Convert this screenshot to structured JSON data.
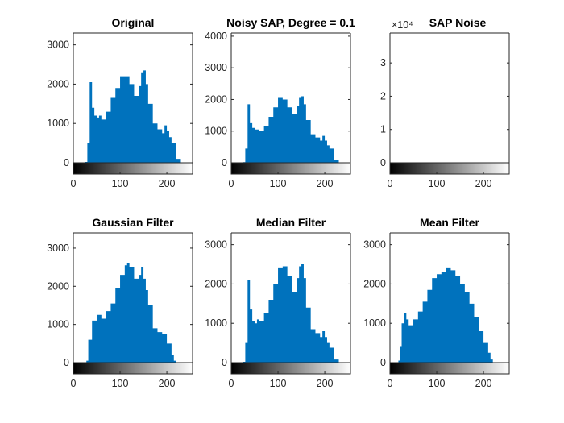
{
  "colors": {
    "bar": "#0072BD",
    "axis": "#262626",
    "background": "#ffffff"
  },
  "chart_data": [
    {
      "type": "bar",
      "title": "Original",
      "xlabel": "",
      "ylabel": "",
      "xlim": [
        0,
        255
      ],
      "ylim": [
        0,
        3300
      ],
      "xticks": [
        0,
        100,
        200
      ],
      "yticks": [
        0,
        1000,
        2000,
        3000
      ],
      "yexp": "",
      "xbins": [
        0,
        10,
        20,
        25,
        30,
        35,
        40,
        45,
        50,
        55,
        60,
        70,
        80,
        90,
        100,
        110,
        120,
        130,
        140,
        145,
        150,
        155,
        160,
        170,
        180,
        190,
        195,
        200,
        205,
        210,
        220,
        230,
        240,
        255
      ],
      "values": [
        0,
        0,
        0,
        20,
        500,
        2050,
        1400,
        1200,
        1150,
        1200,
        1100,
        1300,
        1650,
        1900,
        2200,
        2200,
        2000,
        1700,
        1950,
        2300,
        2350,
        2000,
        1500,
        1000,
        850,
        750,
        950,
        800,
        650,
        500,
        100,
        0,
        0,
        0
      ]
    },
    {
      "type": "bar",
      "title": "Noisy SAP, Degree = 0.1",
      "xlabel": "",
      "ylabel": "",
      "xlim": [
        0,
        255
      ],
      "ylim": [
        0,
        4100
      ],
      "xticks": [
        0,
        100,
        200
      ],
      "yticks": [
        0,
        1000,
        2000,
        3000,
        4000
      ],
      "yexp": "",
      "xbins": [
        0,
        10,
        20,
        25,
        30,
        35,
        40,
        45,
        50,
        55,
        60,
        70,
        80,
        90,
        100,
        110,
        120,
        130,
        140,
        145,
        150,
        155,
        160,
        170,
        180,
        190,
        195,
        200,
        205,
        210,
        220,
        230,
        240,
        255
      ],
      "values": [
        0,
        0,
        0,
        20,
        450,
        1850,
        1250,
        1100,
        1050,
        1050,
        1000,
        1150,
        1450,
        1750,
        2050,
        2000,
        1750,
        1550,
        1800,
        2050,
        2100,
        1850,
        1350,
        900,
        800,
        700,
        850,
        700,
        550,
        450,
        80,
        0,
        0,
        0
      ]
    },
    {
      "type": "bar",
      "title": "SAP Noise",
      "xlabel": "",
      "ylabel": "",
      "xlim": [
        0,
        255
      ],
      "ylim": [
        0,
        3.9
      ],
      "xticks": [
        0,
        100,
        200
      ],
      "yticks": [
        0,
        1,
        2,
        3
      ],
      "yexp": "×10⁴",
      "xbins": [
        0,
        255
      ],
      "values": [
        0,
        0
      ]
    },
    {
      "type": "bar",
      "title": "Gaussian Filter",
      "xlabel": "",
      "ylabel": "",
      "xlim": [
        0,
        255
      ],
      "ylim": [
        0,
        3400
      ],
      "xticks": [
        0,
        100,
        200
      ],
      "yticks": [
        0,
        1000,
        2000,
        3000
      ],
      "yexp": "",
      "xbins": [
        0,
        20,
        28,
        32,
        40,
        50,
        60,
        70,
        80,
        90,
        100,
        110,
        115,
        120,
        130,
        140,
        145,
        150,
        155,
        160,
        170,
        180,
        190,
        200,
        210,
        215,
        220,
        255
      ],
      "values": [
        0,
        0,
        50,
        600,
        1100,
        1250,
        1150,
        1350,
        1550,
        1950,
        2300,
        2550,
        2600,
        2500,
        2200,
        2300,
        2500,
        2200,
        1900,
        1500,
        900,
        800,
        750,
        500,
        200,
        50,
        0,
        0
      ]
    },
    {
      "type": "bar",
      "title": "Median Filter",
      "xlabel": "",
      "ylabel": "",
      "xlim": [
        0,
        255
      ],
      "ylim": [
        0,
        3300
      ],
      "xticks": [
        0,
        100,
        200
      ],
      "yticks": [
        0,
        1000,
        2000,
        3000
      ],
      "yexp": "",
      "xbins": [
        0,
        10,
        20,
        25,
        30,
        35,
        40,
        45,
        50,
        55,
        60,
        70,
        80,
        90,
        100,
        110,
        120,
        130,
        140,
        145,
        150,
        155,
        160,
        170,
        180,
        190,
        195,
        200,
        205,
        210,
        220,
        230,
        240,
        255
      ],
      "values": [
        0,
        0,
        0,
        20,
        500,
        2100,
        1350,
        1050,
        1000,
        1100,
        1050,
        1250,
        1600,
        2000,
        2400,
        2450,
        2200,
        1800,
        2150,
        2450,
        2500,
        2150,
        1400,
        850,
        750,
        650,
        800,
        650,
        500,
        380,
        80,
        0,
        0,
        0
      ]
    },
    {
      "type": "bar",
      "title": "Mean Filter",
      "xlabel": "",
      "ylabel": "",
      "xlim": [
        0,
        255
      ],
      "ylim": [
        0,
        3300
      ],
      "xticks": [
        0,
        100,
        200
      ],
      "yticks": [
        0,
        1000,
        2000,
        3000
      ],
      "yexp": "",
      "xbins": [
        0,
        10,
        18,
        22,
        25,
        30,
        35,
        40,
        50,
        60,
        70,
        80,
        90,
        100,
        110,
        120,
        130,
        140,
        150,
        160,
        170,
        180,
        190,
        200,
        210,
        215,
        220,
        255
      ],
      "values": [
        0,
        0,
        50,
        400,
        1000,
        1250,
        1100,
        950,
        1100,
        1300,
        1550,
        1850,
        2150,
        2250,
        2300,
        2400,
        2350,
        2200,
        2000,
        1800,
        1500,
        1150,
        800,
        500,
        250,
        80,
        0,
        0
      ]
    }
  ]
}
